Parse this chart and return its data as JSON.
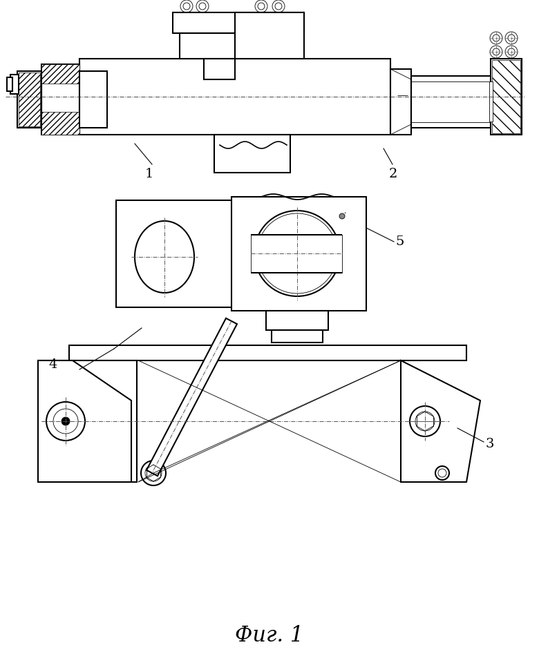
{
  "bg_color": "#ffffff",
  "line_color": "#000000",
  "fig_width": 7.8,
  "fig_height": 9.63,
  "dpi": 100
}
